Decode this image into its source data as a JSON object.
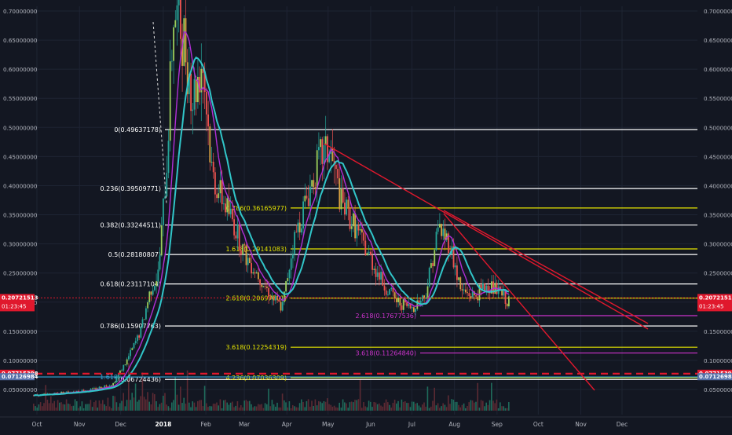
{
  "chart_data": {
    "type": "line",
    "x_ticks": [
      "Oct",
      "Nov",
      "Dec",
      "2018",
      "Feb",
      "Mar",
      "Apr",
      "May",
      "Jun",
      "Jul",
      "Aug",
      "Sep",
      "Oct",
      "Nov",
      "Dec"
    ],
    "y_ticks": [
      "0.70000000",
      "0.65000000",
      "0.60000000",
      "0.55000000",
      "0.50000000",
      "0.45000000",
      "0.40000000",
      "0.35000000",
      "0.30000000",
      "0.25000000",
      "0.20000000",
      "0.15000000",
      "0.10000000",
      "0.05000000"
    ],
    "y_tick_values": [
      0.7,
      0.65,
      0.6,
      0.55,
      0.5,
      0.45,
      0.4,
      0.35,
      0.3,
      0.25,
      0.2,
      0.15,
      0.1,
      0.05
    ],
    "ylim": [
      0.03,
      0.72
    ],
    "x_range": [
      "2017-10-01",
      "2018-12-31"
    ],
    "price_series": {
      "x": [
        "2017-10-01",
        "2017-10-20",
        "2017-11-10",
        "2017-11-25",
        "2017-12-05",
        "2017-12-15",
        "2017-12-22",
        "2017-12-28",
        "2018-01-03",
        "2018-01-08",
        "2018-01-15",
        "2018-01-22",
        "2018-01-29",
        "2018-02-05",
        "2018-02-12",
        "2018-02-20",
        "2018-03-01",
        "2018-03-10",
        "2018-03-20",
        "2018-03-28",
        "2018-04-05",
        "2018-04-15",
        "2018-04-25",
        "2018-05-02",
        "2018-05-10",
        "2018-05-20",
        "2018-05-30",
        "2018-06-10",
        "2018-06-20",
        "2018-06-30",
        "2018-07-10",
        "2018-07-20",
        "2018-07-28",
        "2018-08-05",
        "2018-08-15",
        "2018-08-25",
        "2018-09-05",
        "2018-09-10"
      ],
      "values": [
        0.04,
        0.045,
        0.05,
        0.06,
        0.1,
        0.15,
        0.22,
        0.25,
        0.44,
        0.7,
        0.66,
        0.55,
        0.62,
        0.42,
        0.38,
        0.34,
        0.28,
        0.25,
        0.21,
        0.19,
        0.3,
        0.38,
        0.45,
        0.46,
        0.37,
        0.33,
        0.28,
        0.23,
        0.2,
        0.19,
        0.21,
        0.33,
        0.3,
        0.22,
        0.21,
        0.23,
        0.21,
        0.197
      ]
    },
    "fib_levels": [
      {
        "label": "0(0.49637178)",
        "value": 0.49637178,
        "color": "#ffffff"
      },
      {
        "label": "0.236(0.39509771)",
        "value": 0.39509771,
        "color": "#ffffff"
      },
      {
        "label": "0.382(0.33244511)",
        "value": 0.33244511,
        "color": "#ffffff"
      },
      {
        "label": "0.5(0.28180807)",
        "value": 0.28180807,
        "color": "#ffffff"
      },
      {
        "label": "0.618(0.23117104)",
        "value": 0.23117104,
        "color": "#ffffff"
      },
      {
        "label": "0.786(0.15907763)",
        "value": 0.15907763,
        "color": "#ffffff"
      },
      {
        "label": "1(0.06724436)",
        "value": 0.06724436,
        "color": "#ffffff"
      },
      {
        "label": "0.786(0.36165977)",
        "value": 0.36165977,
        "color": "#e6e600"
      },
      {
        "label": "1.618(0.29141083)",
        "value": 0.29141083,
        "color": "#e6e600"
      },
      {
        "label": "2.618(0.20697701)",
        "value": 0.20697701,
        "color": "#e6e600"
      },
      {
        "label": "3.618(0.12254319)",
        "value": 0.12254319,
        "color": "#e6e600"
      },
      {
        "label": "4.236(0.07036309)",
        "value": 0.07036309,
        "color": "#e6e600"
      },
      {
        "label": "2.618(0.17677536)",
        "value": 0.17677536,
        "color": "#cc33cc"
      },
      {
        "label": "3.618(0.11264840)",
        "value": 0.1126484,
        "color": "#cc33cc"
      },
      {
        "label": "1.618",
        "value": 0.0715,
        "color": "#33aadd"
      }
    ],
    "price_markers": [
      {
        "label": "0.20721513",
        "value": 0.20721513,
        "color": "#e0182d"
      },
      {
        "label": "0.07715398",
        "value": 0.07715398,
        "color": "#e0182d"
      },
      {
        "label": "0.07126984",
        "value": 0.07126984,
        "color": "#5470a8"
      }
    ],
    "countdown": "01:23:45",
    "colors": {
      "background": "#131722",
      "fib": "#ffffff",
      "fib_ext": "#e6e600",
      "fib_magenta": "#cc33cc",
      "ma_fast": "#b12fd6",
      "ma_slow": "#31c6c9",
      "trend": "#e0182d",
      "support": "#e0182d"
    }
  }
}
